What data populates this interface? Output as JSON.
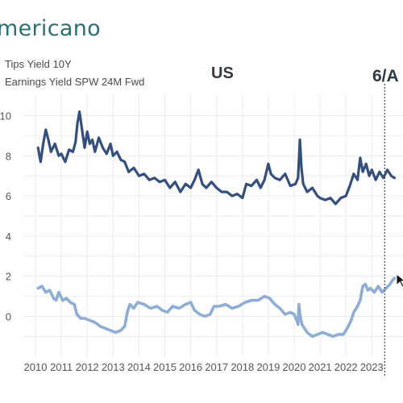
{
  "brand": "mericano",
  "legend": [
    "Tips Yield 10Y",
    "Earnings Yield SPW 24M Fwd"
  ],
  "title": "US",
  "date_tag": "6/A",
  "colors": {
    "earnings": "#344f7e",
    "tips": "#8fadd4",
    "grid": "#ececec",
    "marker": "#555555"
  },
  "chart_data": {
    "type": "line",
    "title": "US",
    "xlim": [
      2010,
      2023.9
    ],
    "ylim": [
      -1.3,
      10.9
    ],
    "x_ticks": [
      2010,
      2011,
      2012,
      2013,
      2014,
      2015,
      2016,
      2017,
      2018,
      2019,
      2020,
      2021,
      2022,
      2023
    ],
    "y_ticks": [
      10,
      8,
      6,
      4,
      2,
      0
    ],
    "y_tick_labels": [
      "10",
      "8",
      "6",
      "4",
      "2",
      "0"
    ],
    "marker_x": 2023.5,
    "series": [
      {
        "name": "Earnings Yield SPW 24M Fwd",
        "points": [
          [
            2010.1,
            8.4
          ],
          [
            2010.2,
            7.7
          ],
          [
            2010.3,
            8.6
          ],
          [
            2010.4,
            9.3
          ],
          [
            2010.5,
            8.8
          ],
          [
            2010.6,
            8.2
          ],
          [
            2010.75,
            8.6
          ],
          [
            2010.9,
            8.0
          ],
          [
            2011.0,
            8.1
          ],
          [
            2011.15,
            7.7
          ],
          [
            2011.3,
            8.3
          ],
          [
            2011.45,
            8.2
          ],
          [
            2011.55,
            8.7
          ],
          [
            2011.62,
            9.6
          ],
          [
            2011.7,
            10.2
          ],
          [
            2011.8,
            9.3
          ],
          [
            2011.9,
            8.4
          ],
          [
            2012.0,
            9.2
          ],
          [
            2012.1,
            8.6
          ],
          [
            2012.2,
            8.8
          ],
          [
            2012.3,
            8.2
          ],
          [
            2012.45,
            8.9
          ],
          [
            2012.6,
            8.4
          ],
          [
            2012.75,
            8.1
          ],
          [
            2012.9,
            8.6
          ],
          [
            2013.0,
            8.0
          ],
          [
            2013.15,
            8.2
          ],
          [
            2013.3,
            7.8
          ],
          [
            2013.45,
            7.7
          ],
          [
            2013.6,
            7.2
          ],
          [
            2013.8,
            7.4
          ],
          [
            2014.0,
            7.0
          ],
          [
            2014.2,
            7.1
          ],
          [
            2014.4,
            6.8
          ],
          [
            2014.6,
            6.9
          ],
          [
            2014.8,
            6.7
          ],
          [
            2015.0,
            6.8
          ],
          [
            2015.2,
            6.4
          ],
          [
            2015.4,
            6.7
          ],
          [
            2015.6,
            6.2
          ],
          [
            2015.8,
            6.6
          ],
          [
            2016.0,
            6.4
          ],
          [
            2016.15,
            6.8
          ],
          [
            2016.3,
            7.3
          ],
          [
            2016.45,
            6.6
          ],
          [
            2016.6,
            6.4
          ],
          [
            2016.8,
            6.7
          ],
          [
            2017.0,
            6.4
          ],
          [
            2017.2,
            6.2
          ],
          [
            2017.4,
            6.2
          ],
          [
            2017.6,
            6.0
          ],
          [
            2017.8,
            6.1
          ],
          [
            2018.0,
            5.9
          ],
          [
            2018.15,
            6.6
          ],
          [
            2018.35,
            6.5
          ],
          [
            2018.55,
            6.8
          ],
          [
            2018.7,
            6.4
          ],
          [
            2018.85,
            6.8
          ],
          [
            2019.0,
            7.6
          ],
          [
            2019.1,
            7.1
          ],
          [
            2019.25,
            6.9
          ],
          [
            2019.45,
            6.8
          ],
          [
            2019.65,
            7.1
          ],
          [
            2019.85,
            6.5
          ],
          [
            2020.05,
            6.6
          ],
          [
            2020.15,
            6.9
          ],
          [
            2020.22,
            8.8
          ],
          [
            2020.28,
            7.4
          ],
          [
            2020.35,
            6.6
          ],
          [
            2020.5,
            6.2
          ],
          [
            2020.7,
            6.4
          ],
          [
            2020.9,
            6.0
          ],
          [
            2021.0,
            5.9
          ],
          [
            2021.2,
            5.8
          ],
          [
            2021.4,
            5.9
          ],
          [
            2021.6,
            5.6
          ],
          [
            2021.8,
            5.9
          ],
          [
            2022.0,
            6.0
          ],
          [
            2022.15,
            6.5
          ],
          [
            2022.3,
            7.1
          ],
          [
            2022.45,
            6.8
          ],
          [
            2022.55,
            7.9
          ],
          [
            2022.65,
            7.2
          ],
          [
            2022.78,
            7.6
          ],
          [
            2022.9,
            7.0
          ],
          [
            2023.0,
            7.3
          ],
          [
            2023.15,
            6.8
          ],
          [
            2023.3,
            7.2
          ],
          [
            2023.45,
            6.9
          ],
          [
            2023.6,
            7.3
          ],
          [
            2023.75,
            7.0
          ],
          [
            2023.88,
            6.9
          ]
        ]
      },
      {
        "name": "Tips Yield 10Y",
        "points": [
          [
            2010.1,
            1.4
          ],
          [
            2010.25,
            1.5
          ],
          [
            2010.4,
            1.2
          ],
          [
            2010.55,
            1.3
          ],
          [
            2010.7,
            0.9
          ],
          [
            2010.8,
            0.8
          ],
          [
            2010.9,
            1.2
          ],
          [
            2011.05,
            0.8
          ],
          [
            2011.2,
            0.9
          ],
          [
            2011.35,
            0.7
          ],
          [
            2011.5,
            0.6
          ],
          [
            2011.6,
            0.1
          ],
          [
            2011.75,
            -0.1
          ],
          [
            2011.9,
            -0.1
          ],
          [
            2012.1,
            -0.2
          ],
          [
            2012.3,
            -0.3
          ],
          [
            2012.5,
            -0.5
          ],
          [
            2012.7,
            -0.6
          ],
          [
            2012.9,
            -0.7
          ],
          [
            2013.1,
            -0.8
          ],
          [
            2013.3,
            -0.7
          ],
          [
            2013.45,
            -0.5
          ],
          [
            2013.55,
            0.2
          ],
          [
            2013.65,
            0.6
          ],
          [
            2013.8,
            0.4
          ],
          [
            2013.95,
            0.7
          ],
          [
            2014.2,
            0.6
          ],
          [
            2014.45,
            0.4
          ],
          [
            2014.7,
            0.5
          ],
          [
            2014.9,
            0.3
          ],
          [
            2015.1,
            0.2
          ],
          [
            2015.3,
            0.5
          ],
          [
            2015.55,
            0.4
          ],
          [
            2015.8,
            0.6
          ],
          [
            2016.0,
            0.7
          ],
          [
            2016.15,
            0.3
          ],
          [
            2016.35,
            0.1
          ],
          [
            2016.55,
            0.0
          ],
          [
            2016.75,
            0.1
          ],
          [
            2016.9,
            0.5
          ],
          [
            2017.1,
            0.5
          ],
          [
            2017.35,
            0.6
          ],
          [
            2017.6,
            0.4
          ],
          [
            2017.85,
            0.5
          ],
          [
            2018.1,
            0.7
          ],
          [
            2018.35,
            0.8
          ],
          [
            2018.6,
            0.8
          ],
          [
            2018.85,
            1.0
          ],
          [
            2019.05,
            0.9
          ],
          [
            2019.25,
            0.6
          ],
          [
            2019.45,
            0.4
          ],
          [
            2019.65,
            0.1
          ],
          [
            2019.85,
            0.2
          ],
          [
            2020.0,
            0.1
          ],
          [
            2020.1,
            -0.2
          ],
          [
            2020.15,
            -0.4
          ],
          [
            2020.18,
            0.6
          ],
          [
            2020.22,
            0.1
          ],
          [
            2020.3,
            -0.4
          ],
          [
            2020.5,
            -0.8
          ],
          [
            2020.7,
            -1.0
          ],
          [
            2020.9,
            -0.9
          ],
          [
            2021.1,
            -0.8
          ],
          [
            2021.3,
            -0.9
          ],
          [
            2021.5,
            -1.0
          ],
          [
            2021.7,
            -0.9
          ],
          [
            2021.9,
            -0.9
          ],
          [
            2022.05,
            -0.6
          ],
          [
            2022.2,
            -0.2
          ],
          [
            2022.3,
            0.2
          ],
          [
            2022.45,
            0.5
          ],
          [
            2022.55,
            0.8
          ],
          [
            2022.65,
            1.5
          ],
          [
            2022.75,
            1.6
          ],
          [
            2022.85,
            1.3
          ],
          [
            2022.95,
            1.4
          ],
          [
            2023.1,
            1.2
          ],
          [
            2023.25,
            1.5
          ],
          [
            2023.4,
            1.2
          ],
          [
            2023.55,
            1.4
          ],
          [
            2023.7,
            1.6
          ],
          [
            2023.8,
            1.8
          ],
          [
            2023.88,
            1.9
          ]
        ]
      }
    ]
  }
}
